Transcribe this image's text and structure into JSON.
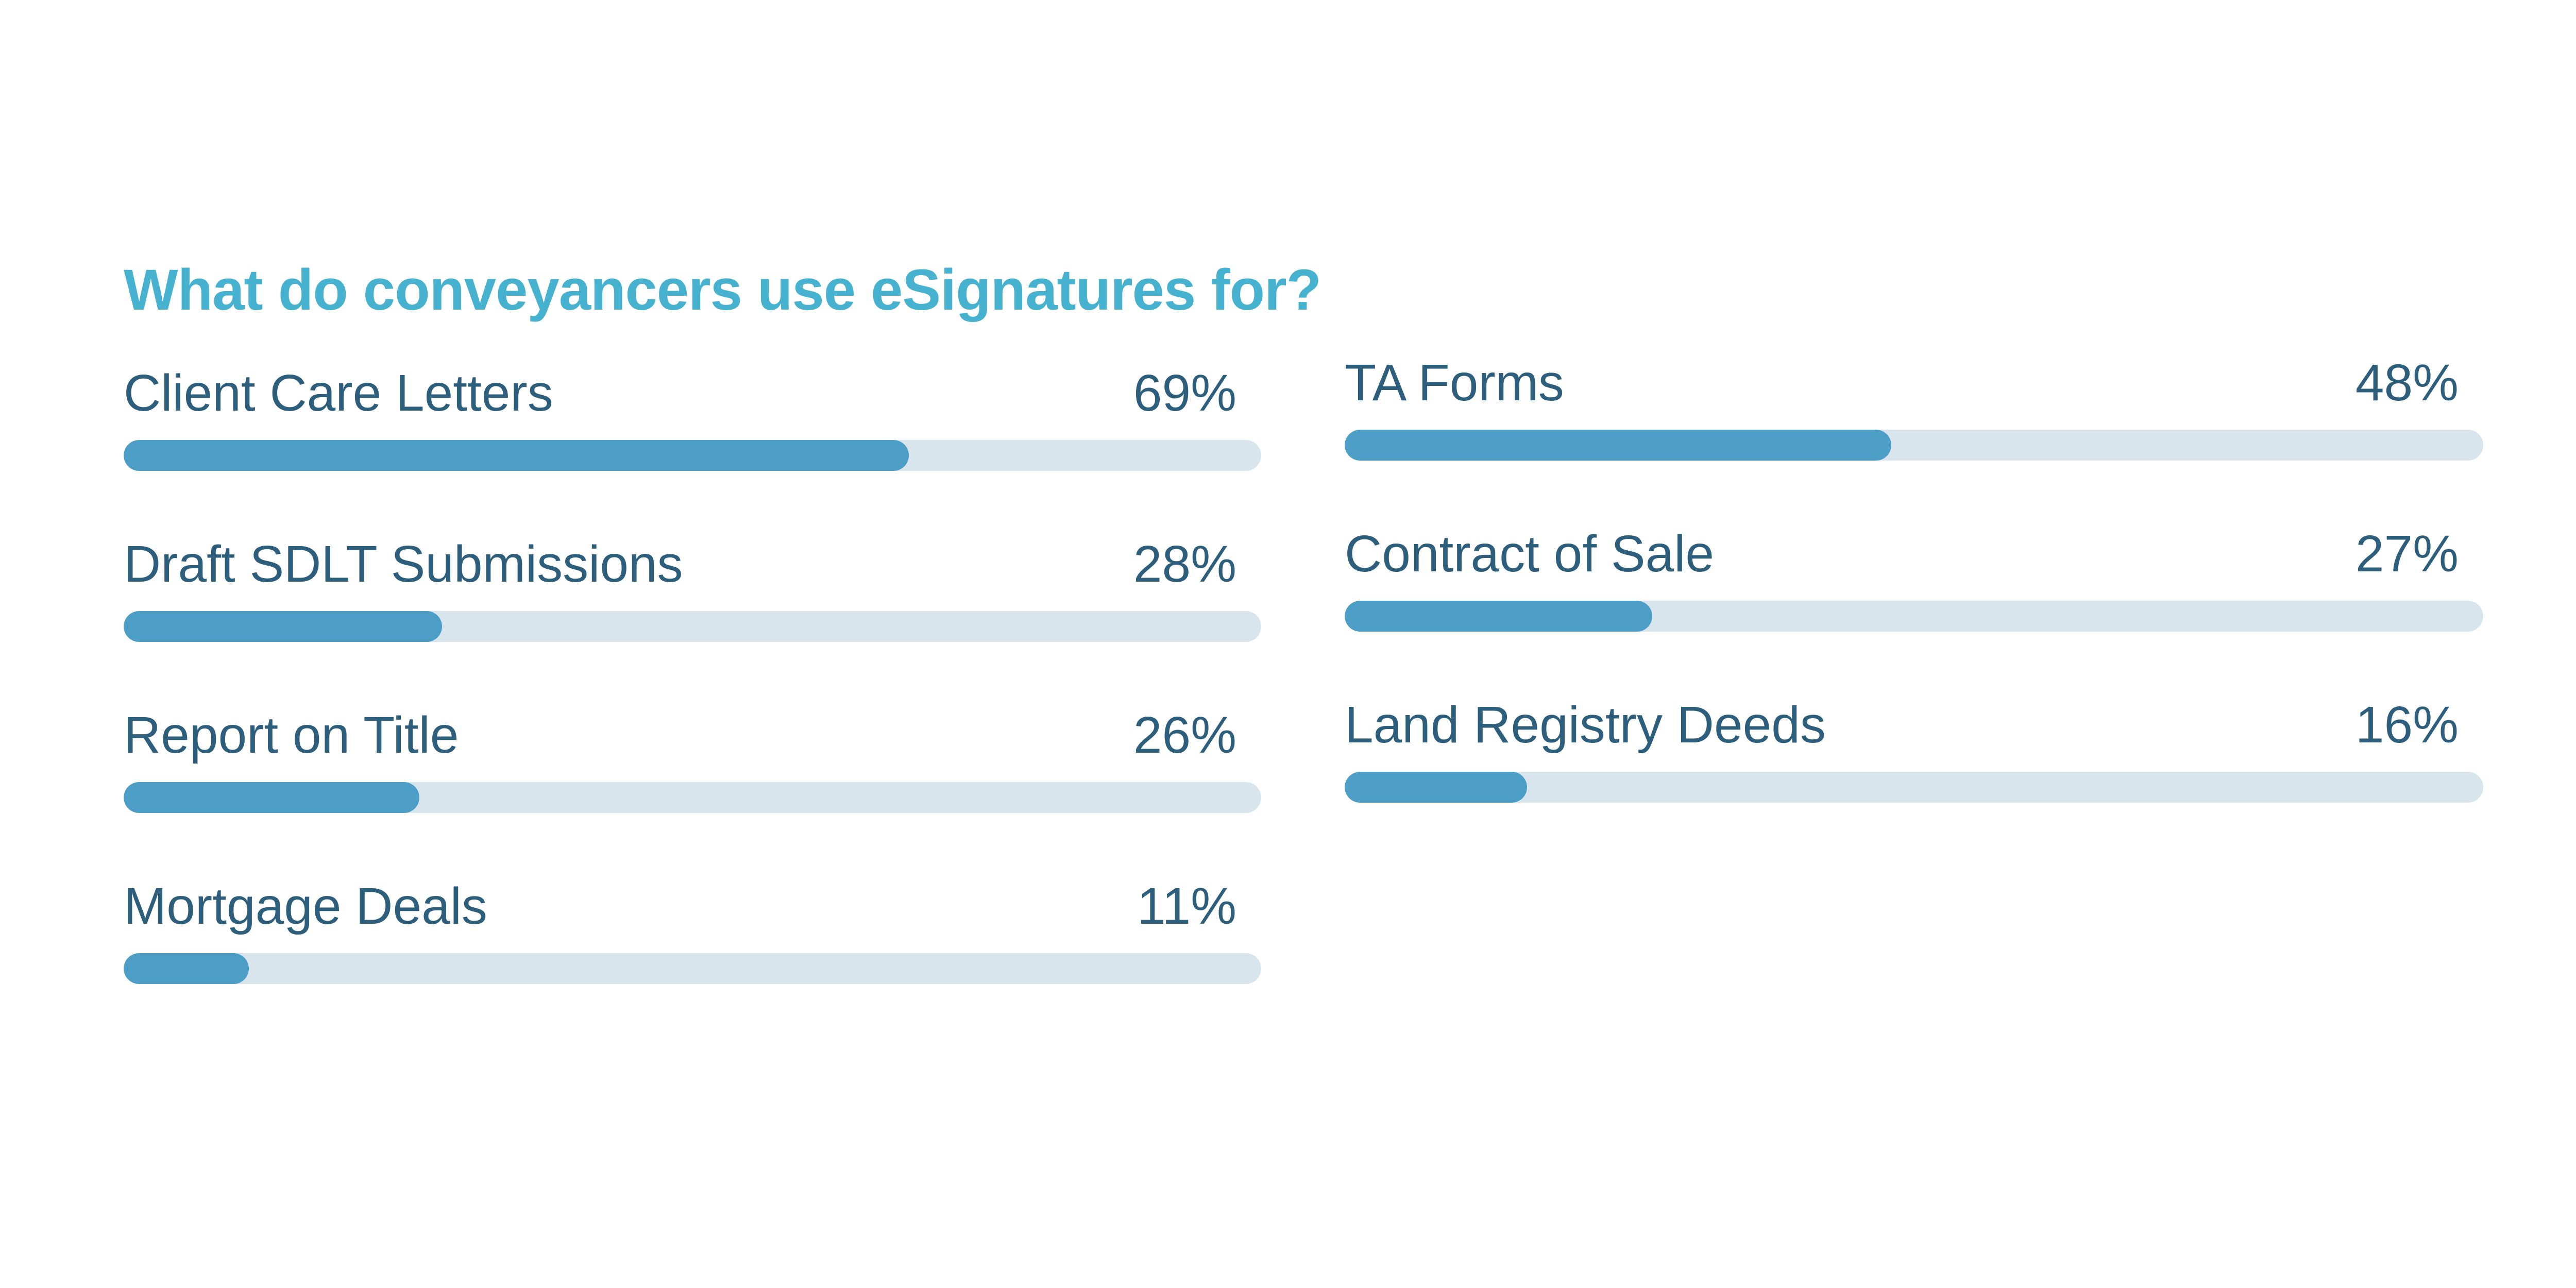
{
  "page": {
    "background": "#ffffff"
  },
  "chart_data": {
    "type": "bar",
    "orientation": "horizontal",
    "title": "What do conveyancers use eSignatures for?",
    "unit": "%",
    "value_range": [
      0,
      100
    ],
    "grid": false,
    "legend": false,
    "categories": [
      "Client Care Letters",
      "Draft SDLT Submissions",
      "Report on Title",
      "Mortgage Deals",
      "TA Forms",
      "Contract of Sale",
      "Land Registry Deeds"
    ],
    "values": [
      69,
      28,
      26,
      11,
      48,
      27,
      16
    ],
    "columns": [
      {
        "position": "left",
        "items": [
          {
            "label": "Client Care Letters",
            "value": 69
          },
          {
            "label": "Draft SDLT Submissions",
            "value": 28
          },
          {
            "label": "Report on Title",
            "value": 26
          },
          {
            "label": "Mortgage Deals",
            "value": 11
          }
        ]
      },
      {
        "position": "right",
        "items": [
          {
            "label": "TA Forms",
            "value": 48
          },
          {
            "label": "Contract of Sale",
            "value": 27
          },
          {
            "label": "Land Registry Deeds",
            "value": 16
          }
        ]
      }
    ],
    "colors": {
      "title": "#46b2d0",
      "label": "#2d5f7d",
      "value_text": "#2d5f7d",
      "bar_fill": "#4d9ec6",
      "bar_track": "#d8e5ec",
      "background": "#ffffff"
    }
  }
}
